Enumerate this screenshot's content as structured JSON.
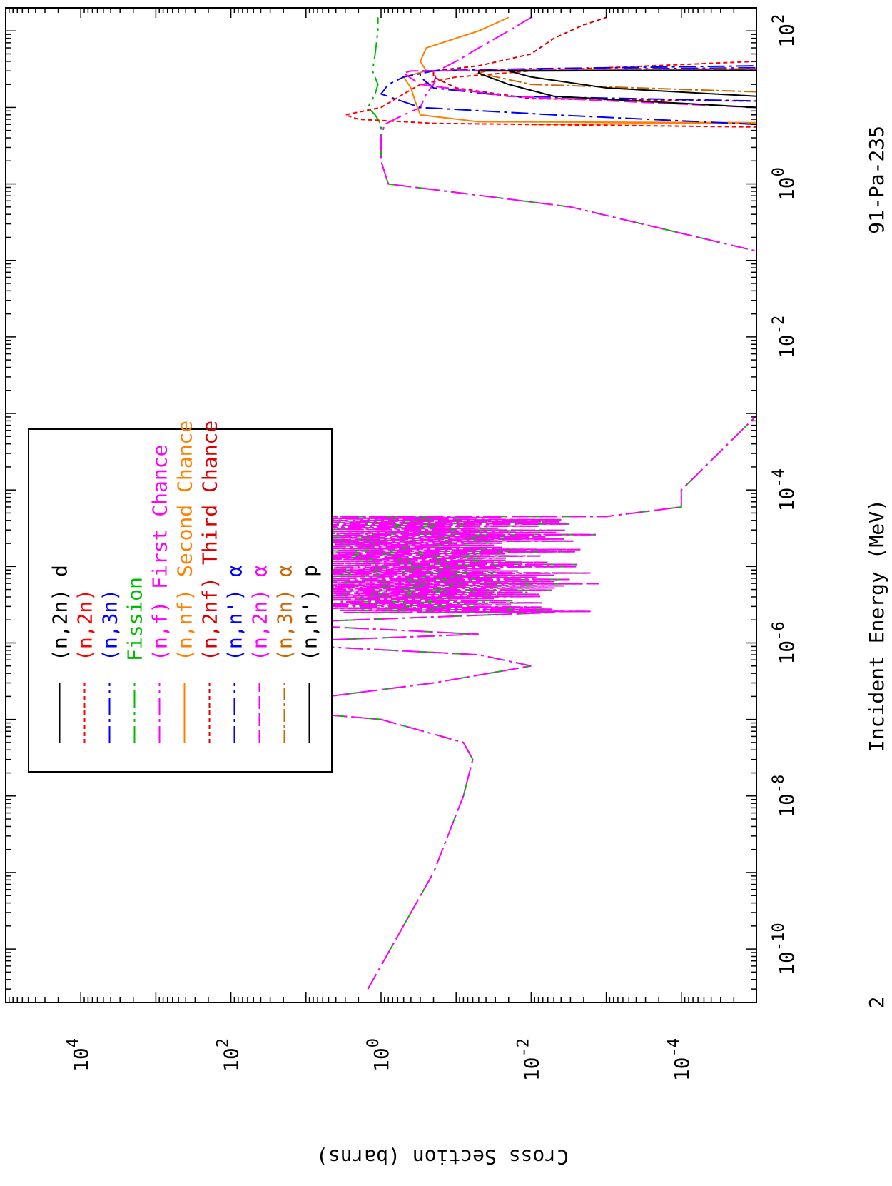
{
  "chart_data": {
    "type": "line",
    "orientation_note": "rotated 90 degrees counter-clockwise",
    "title": "91-Pa-235",
    "xlabel": "Incident Energy (MeV)",
    "ylabel": "Cross Section (barns)",
    "x_scale": "log",
    "y_scale": "log",
    "xlim": [
      2e-11,
      200
    ],
    "ylim": [
      1e-05,
      100000.0
    ],
    "x_tick_labels": [
      {
        "value": 1e-10,
        "base": "10",
        "exp": "-10"
      },
      {
        "value": 1e-08,
        "base": "10",
        "exp": "-8"
      },
      {
        "value": 1e-06,
        "base": "10",
        "exp": "-6"
      },
      {
        "value": 0.0001,
        "base": "10",
        "exp": "-4"
      },
      {
        "value": 0.01,
        "base": "10",
        "exp": "-2"
      },
      {
        "value": 1,
        "base": "10",
        "exp": "0"
      },
      {
        "value": 100,
        "base": "10",
        "exp": "2"
      }
    ],
    "x_corner_label": "2",
    "y_tick_labels": [
      {
        "value": 0.0001,
        "base": "10",
        "exp": "-4"
      },
      {
        "value": 0.01,
        "base": "10",
        "exp": "-2"
      },
      {
        "value": 1,
        "base": "10",
        "exp": "0"
      },
      {
        "value": 100,
        "base": "10",
        "exp": "2"
      },
      {
        "value": 10000,
        "base": "10",
        "exp": "4"
      }
    ],
    "grid": false,
    "legend_position": "top-right (upper-left before rotation)",
    "legend": [
      {
        "label": "(n,2n) d",
        "color": "#000000",
        "dash": "none"
      },
      {
        "label": "(n,2n)",
        "color": "#ff0000",
        "dash": "6,4"
      },
      {
        "label": "(n,3n)",
        "color": "#0000ff",
        "dash": "24,6,4,6"
      },
      {
        "label": "Fission",
        "color": "#00bb00",
        "dash": "24,6,4,6,4,6"
      },
      {
        "label": "(n,f) First Chance",
        "color": "#ff00ff",
        "dash": "24,6,4,6"
      },
      {
        "label": "(n,nf) Second Chance",
        "color": "#ff8000",
        "dash": "none"
      },
      {
        "label": "(n,2nf) Third Chance",
        "color": "#dd0000",
        "dash": "6,4"
      },
      {
        "label": "(n,n') α",
        "color": "#0000ff",
        "dash": "24,6,4,6"
      },
      {
        "label": "(n,2n) α",
        "color": "#ff00ff",
        "dash": "18,6"
      },
      {
        "label": "(n,3n) α",
        "color": "#cc6600",
        "dash": "18,4,4,4"
      },
      {
        "label": "(n,n') p",
        "color": "#000000",
        "dash": "none"
      }
    ],
    "series": [
      {
        "name": "Fission",
        "color": "#00bb00",
        "dash": "24,6,4,6,4,6",
        "width": 2,
        "points": [
          [
            3e-11,
            1.5
          ],
          [
            1e-09,
            0.2
          ],
          [
            1e-08,
            0.08
          ],
          [
            3e-08,
            0.06
          ],
          [
            5e-08,
            0.08
          ],
          [
            1e-07,
            1
          ],
          [
            1.5e-07,
            130
          ],
          [
            2e-07,
            5
          ],
          [
            3e-07,
            0.2
          ],
          [
            5e-07,
            0.01
          ],
          [
            7e-07,
            0.05
          ],
          [
            1e-06,
            60
          ],
          [
            1.3e-06,
            0.05
          ],
          [
            1.8e-06,
            40
          ],
          [
            2.5e-06,
            0.005
          ],
          [
            5e-06,
            0.0001
          ],
          [
            0.0001,
            0.0001
          ],
          [
            0.003,
            3e-06
          ],
          [
            0.1,
            3e-06
          ],
          [
            0.5,
            0.003
          ],
          [
            1,
            0.8
          ],
          [
            2,
            1.0
          ],
          [
            4,
            1.0
          ],
          [
            6,
            1.0
          ],
          [
            8,
            1.2
          ],
          [
            10,
            1.5
          ],
          [
            15,
            1.2
          ],
          [
            20,
            1.1
          ],
          [
            30,
            1.3
          ],
          [
            50,
            1.2
          ],
          [
            100,
            1.1
          ],
          [
            150,
            1.1
          ]
        ]
      },
      {
        "name": "(n,f) First Chance",
        "color": "#ff00ff",
        "dash": "24,6,4,6",
        "width": 2,
        "points": [
          [
            3e-11,
            1.5
          ],
          [
            1e-09,
            0.2
          ],
          [
            1e-08,
            0.08
          ],
          [
            3e-08,
            0.06
          ],
          [
            5e-08,
            0.08
          ],
          [
            1e-07,
            1
          ],
          [
            1.5e-07,
            130
          ],
          [
            2e-07,
            5
          ],
          [
            3e-07,
            0.2
          ],
          [
            5e-07,
            0.01
          ],
          [
            7e-07,
            0.05
          ],
          [
            1e-06,
            60
          ],
          [
            1.3e-06,
            0.05
          ],
          [
            1.8e-06,
            40
          ],
          [
            2.5e-06,
            0.005
          ],
          [
            5e-06,
            0.0001
          ],
          [
            0.0001,
            0.0001
          ],
          [
            0.003,
            3e-06
          ],
          [
            0.1,
            3e-06
          ],
          [
            0.5,
            0.003
          ],
          [
            1,
            0.8
          ],
          [
            2,
            1.0
          ],
          [
            4,
            1.0
          ],
          [
            6,
            0.9
          ],
          [
            8,
            0.5
          ],
          [
            10,
            0.3
          ],
          [
            15,
            0.25
          ],
          [
            20,
            0.2
          ],
          [
            30,
            0.18
          ],
          [
            40,
            0.1
          ],
          [
            60,
            0.05
          ],
          [
            100,
            0.02
          ],
          [
            150,
            0.01
          ],
          [
            160,
            0.009
          ]
        ]
      },
      {
        "name": "(n,nf) Second Chance",
        "color": "#ff8000",
        "dash": "none",
        "width": 2,
        "points": [
          [
            6,
            0.01
          ],
          [
            6.3,
            5e-06
          ],
          [
            6.5,
            0.05
          ],
          [
            8,
            0.3
          ],
          [
            12,
            0.35
          ],
          [
            18,
            0.4
          ],
          [
            25,
            0.5
          ],
          [
            30,
            0.25
          ],
          [
            40,
            0.3
          ],
          [
            60,
            0.25
          ],
          [
            100,
            0.05
          ],
          [
            150,
            0.02
          ]
        ]
      },
      {
        "name": "(n,2nf) Third Chance",
        "color": "#dd0000",
        "dash": "6,4",
        "width": 2,
        "points": [
          [
            12,
            5e-06
          ],
          [
            13,
            0.01
          ],
          [
            18,
            0.1
          ],
          [
            25,
            0.2
          ],
          [
            30,
            0.2
          ],
          [
            35,
            0.05
          ],
          [
            50,
            0.01
          ],
          [
            80,
            0.005
          ],
          [
            120,
            0.002
          ],
          [
            150,
            0.001
          ]
        ]
      },
      {
        "name": "(n,2n)",
        "color": "#ff0000",
        "dash": "6,4",
        "width": 2,
        "points": [
          [
            5.5,
            5e-06
          ],
          [
            6.2,
            0.2
          ],
          [
            7,
            2
          ],
          [
            8,
            3
          ],
          [
            10,
            1
          ],
          [
            15,
            0.5
          ],
          [
            20,
            0.3
          ],
          [
            25,
            0.1
          ],
          [
            30,
            0.01
          ],
          [
            40,
            1e-05
          ]
        ]
      },
      {
        "name": "(n,3n)",
        "color": "#0000ff",
        "dash": "24,6,4,6",
        "width": 2,
        "points": [
          [
            12,
            5e-06
          ],
          [
            14,
            0.02
          ],
          [
            18,
            0.2
          ],
          [
            25,
            0.3
          ],
          [
            30,
            0.3
          ],
          [
            32,
            0.01
          ],
          [
            35,
            1e-05
          ]
        ]
      },
      {
        "name": "(n,n') α",
        "color": "#0000ff",
        "dash": "24,6,4,6",
        "width": 2,
        "points": [
          [
            6,
            1e-05
          ],
          [
            8,
            0.005
          ],
          [
            10,
            0.3
          ],
          [
            15,
            1.0
          ],
          [
            20,
            0.8
          ],
          [
            25,
            0.5
          ],
          [
            30,
            0.2
          ],
          [
            33,
            1e-05
          ]
        ]
      },
      {
        "name": "(n,2n) α",
        "color": "#ff00ff",
        "dash": "18,6",
        "width": 2,
        "points": [
          [
            10,
            1e-05
          ],
          [
            14,
            0.02
          ],
          [
            20,
            0.3
          ],
          [
            28,
            0.5
          ],
          [
            30,
            0.4
          ],
          [
            32,
            1e-05
          ]
        ]
      },
      {
        "name": "(n,3n) α",
        "color": "#cc6600",
        "dash": "18,4,4,4",
        "width": 2,
        "points": [
          [
            16,
            1e-05
          ],
          [
            20,
            0.01
          ],
          [
            28,
            0.05
          ],
          [
            30,
            0.04
          ],
          [
            32,
            1e-05
          ]
        ]
      },
      {
        "name": "(n,2n) d",
        "color": "#000000",
        "dash": "none",
        "width": 2,
        "points": [
          [
            10,
            1e-05
          ],
          [
            14,
            0.005
          ],
          [
            20,
            0.02
          ],
          [
            28,
            0.05
          ],
          [
            30,
            0.05
          ],
          [
            30.5,
            1e-05
          ]
        ]
      },
      {
        "name": "(n,n') p",
        "color": "#000000",
        "dash": "none",
        "width": 2,
        "points": [
          [
            14,
            1e-05
          ],
          [
            18,
            0.001
          ],
          [
            25,
            0.01
          ],
          [
            30,
            0.02
          ],
          [
            30.5,
            1e-05
          ]
        ]
      }
    ]
  }
}
